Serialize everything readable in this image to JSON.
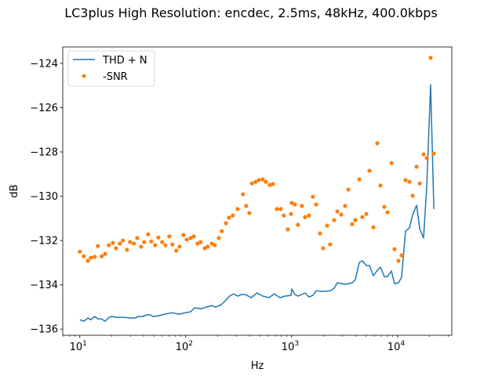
{
  "chart_data": {
    "type": "line",
    "title": "LC3plus High Resolution: encdec, 2.5ms, 48kHz, 400.0kbps",
    "xlabel": "Hz",
    "ylabel": "dB",
    "xscale": "log",
    "xlim": [
      6.9,
      32400
    ],
    "ylim": [
      -136.28,
      -123.26
    ],
    "grid": false,
    "legend_position": "top-left",
    "x_ticks": [
      {
        "value": 10,
        "base": "10",
        "exp": "1"
      },
      {
        "value": 100,
        "base": "10",
        "exp": "2"
      },
      {
        "value": 1000,
        "base": "10",
        "exp": "3"
      },
      {
        "value": 10000,
        "base": "10",
        "exp": "4"
      }
    ],
    "y_ticks": [
      {
        "value": -124,
        "label": "−124"
      },
      {
        "value": -126,
        "label": "−126"
      },
      {
        "value": -128,
        "label": "−128"
      },
      {
        "value": -130,
        "label": "−130"
      },
      {
        "value": -132,
        "label": "−132"
      },
      {
        "value": -134,
        "label": "−134"
      },
      {
        "value": -136,
        "label": "−136"
      }
    ],
    "series": [
      {
        "name": "THD + N",
        "kind": "line",
        "color": "#1f77b4",
        "points": [
          [
            10,
            -135.58
          ],
          [
            10.9,
            -135.65
          ],
          [
            11.9,
            -135.5
          ],
          [
            12.7,
            -135.58
          ],
          [
            13.8,
            -135.43
          ],
          [
            14.8,
            -135.54
          ],
          [
            16.1,
            -135.54
          ],
          [
            17.3,
            -135.65
          ],
          [
            18.8,
            -135.47
          ],
          [
            20.1,
            -135.43
          ],
          [
            21.9,
            -135.47
          ],
          [
            25.5,
            -135.47
          ],
          [
            30.3,
            -135.5
          ],
          [
            33,
            -135.5
          ],
          [
            35.9,
            -135.43
          ],
          [
            39.1,
            -135.43
          ],
          [
            42.6,
            -135.36
          ],
          [
            46.4,
            -135.36
          ],
          [
            48.9,
            -135.43
          ],
          [
            55.9,
            -135.4
          ],
          [
            63.1,
            -135.33
          ],
          [
            74.8,
            -135.26
          ],
          [
            85.8,
            -135.33
          ],
          [
            100,
            -135.26
          ],
          [
            111,
            -135.22
          ],
          [
            121,
            -135.04
          ],
          [
            141,
            -135.08
          ],
          [
            155,
            -135.01
          ],
          [
            176,
            -134.94
          ],
          [
            191,
            -135.01
          ],
          [
            216,
            -134.9
          ],
          [
            239,
            -134.69
          ],
          [
            259,
            -134.51
          ],
          [
            283,
            -134.41
          ],
          [
            308,
            -134.51
          ],
          [
            335,
            -134.44
          ],
          [
            366,
            -134.44
          ],
          [
            413,
            -134.58
          ],
          [
            472,
            -134.37
          ],
          [
            532,
            -134.51
          ],
          [
            610,
            -134.58
          ],
          [
            685,
            -134.41
          ],
          [
            776,
            -134.58
          ],
          [
            860,
            -134.51
          ],
          [
            984,
            -134.48
          ],
          [
            1000,
            -134.19
          ],
          [
            1071,
            -134.44
          ],
          [
            1146,
            -134.51
          ],
          [
            1336,
            -134.37
          ],
          [
            1455,
            -134.55
          ],
          [
            1585,
            -134.48
          ],
          [
            1698,
            -134.27
          ],
          [
            1978,
            -134.3
          ],
          [
            2307,
            -134.27
          ],
          [
            2512,
            -134.16
          ],
          [
            2692,
            -133.91
          ],
          [
            3190,
            -133.98
          ],
          [
            3718,
            -133.91
          ],
          [
            3981,
            -133.77
          ],
          [
            4335,
            -132.99
          ],
          [
            4642,
            -132.92
          ],
          [
            5055,
            -133.13
          ],
          [
            5412,
            -133.13
          ],
          [
            5893,
            -133.59
          ],
          [
            6415,
            -133.35
          ],
          [
            6871,
            -133.2
          ],
          [
            7482,
            -133.63
          ],
          [
            8014,
            -133.63
          ],
          [
            8728,
            -133.38
          ],
          [
            9339,
            -133.95
          ],
          [
            10170,
            -133.91
          ],
          [
            10890,
            -133.66
          ],
          [
            11860,
            -131.58
          ],
          [
            12910,
            -131.43
          ],
          [
            13830,
            -130.83
          ],
          [
            15060,
            -130.41
          ],
          [
            16130,
            -131.47
          ],
          [
            17550,
            -131.89
          ],
          [
            18800,
            -129.52
          ],
          [
            20460,
            -124.96
          ],
          [
            21930,
            -130.58
          ]
        ]
      },
      {
        "name": "-SNR",
        "kind": "scatter",
        "color": "#ff7f0e",
        "points": [
          [
            10,
            -132.5
          ],
          [
            10.9,
            -132.71
          ],
          [
            11.9,
            -132.92
          ],
          [
            12.7,
            -132.78
          ],
          [
            13.8,
            -132.74
          ],
          [
            14.8,
            -132.25
          ],
          [
            16.1,
            -132.71
          ],
          [
            17.3,
            -132.6
          ],
          [
            18.8,
            -132.21
          ],
          [
            20.5,
            -132.11
          ],
          [
            21.9,
            -132.35
          ],
          [
            23.9,
            -132.14
          ],
          [
            25.5,
            -132
          ],
          [
            27.8,
            -132.42
          ],
          [
            29.8,
            -132.07
          ],
          [
            32.4,
            -132.14
          ],
          [
            34.8,
            -131.89
          ],
          [
            37.8,
            -132.28
          ],
          [
            40.5,
            -132.07
          ],
          [
            44.1,
            -131.72
          ],
          [
            47.2,
            -132.04
          ],
          [
            51.4,
            -132.21
          ],
          [
            55.1,
            -131.86
          ],
          [
            59.9,
            -132.07
          ],
          [
            64.2,
            -132.21
          ],
          [
            69.9,
            -131.82
          ],
          [
            74.8,
            -132.18
          ],
          [
            81.4,
            -132.46
          ],
          [
            87.3,
            -132.28
          ],
          [
            95,
            -131.75
          ],
          [
            102,
            -131.96
          ],
          [
            111,
            -131.89
          ],
          [
            119,
            -131.82
          ],
          [
            129,
            -132.14
          ],
          [
            138,
            -132.07
          ],
          [
            151,
            -132.35
          ],
          [
            161,
            -132.28
          ],
          [
            176,
            -132.14
          ],
          [
            188,
            -132.21
          ],
          [
            205,
            -131.89
          ],
          [
            219,
            -131.58
          ],
          [
            239,
            -131.22
          ],
          [
            256,
            -130.97
          ],
          [
            278,
            -130.87
          ],
          [
            308,
            -130.58
          ],
          [
            347,
            -129.91
          ],
          [
            372,
            -130.44
          ],
          [
            398,
            -130.76
          ],
          [
            420,
            -129.42
          ],
          [
            456,
            -129.35
          ],
          [
            490,
            -129.27
          ],
          [
            532,
            -129.24
          ],
          [
            570,
            -129.35
          ],
          [
            621,
            -129.49
          ],
          [
            665,
            -129.45
          ],
          [
            723,
            -130.58
          ],
          [
            788,
            -130.58
          ],
          [
            843,
            -130.87
          ],
          [
            918,
            -131.5
          ],
          [
            984,
            -130.8
          ],
          [
            1000,
            -130.3
          ],
          [
            1071,
            -130.37
          ],
          [
            1146,
            -131.29
          ],
          [
            1248,
            -130.44
          ],
          [
            1336,
            -130.94
          ],
          [
            1455,
            -130.87
          ],
          [
            1585,
            -130.02
          ],
          [
            1698,
            -130.37
          ],
          [
            1849,
            -131.68
          ],
          [
            1978,
            -132.35
          ],
          [
            2154,
            -131.33
          ],
          [
            2307,
            -132.18
          ],
          [
            2512,
            -131.08
          ],
          [
            2692,
            -130.69
          ],
          [
            2929,
            -130.83
          ],
          [
            3190,
            -130.44
          ],
          [
            3413,
            -129.7
          ],
          [
            3718,
            -131.26
          ],
          [
            3981,
            -131.08
          ],
          [
            4335,
            -129.24
          ],
          [
            4642,
            -130.94
          ],
          [
            5055,
            -130.8
          ],
          [
            5412,
            -128.85
          ],
          [
            5893,
            -131.4
          ],
          [
            6415,
            -127.61
          ],
          [
            6871,
            -129.52
          ],
          [
            7482,
            -130.48
          ],
          [
            8014,
            -130.73
          ],
          [
            8728,
            -128.5
          ],
          [
            9339,
            -132.39
          ],
          [
            10170,
            -132.92
          ],
          [
            10890,
            -132.67
          ],
          [
            11860,
            -129.27
          ],
          [
            12910,
            -129.35
          ],
          [
            13830,
            -129.98
          ],
          [
            15060,
            -128.67
          ],
          [
            16130,
            -129.42
          ],
          [
            17550,
            -128.11
          ],
          [
            18800,
            -128.28
          ],
          [
            20460,
            -123.75
          ],
          [
            21930,
            -128.07
          ]
        ]
      }
    ]
  }
}
